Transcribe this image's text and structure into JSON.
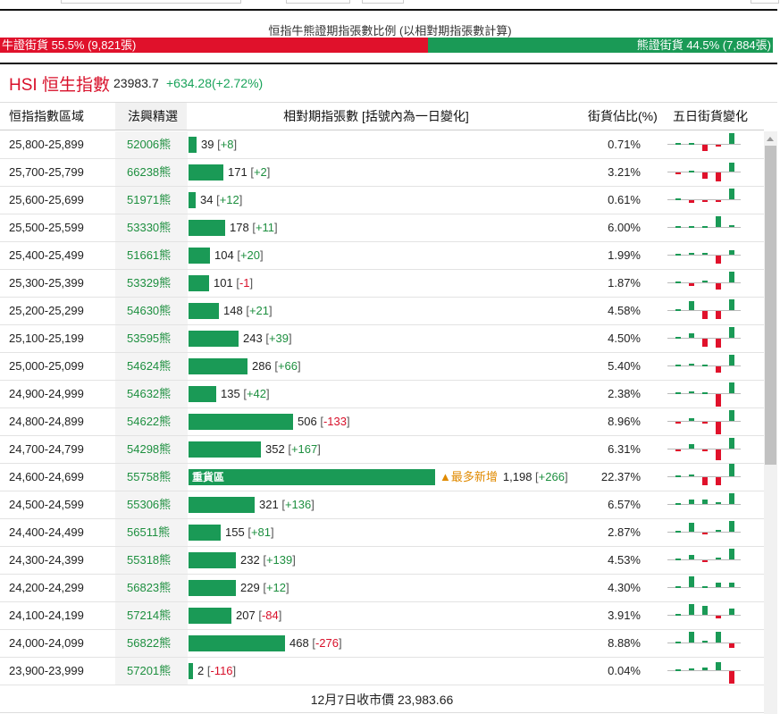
{
  "ratio": {
    "title": "恒指牛熊證期指張數比例 (以相對期指張數計算)",
    "bull_label": "牛證街貨 55.5% (9,821張)",
    "bear_label": "熊證街貨 44.5% (7,884張)",
    "bull_pct": 55.5,
    "bear_pct": 44.5,
    "bull_color": "#e0112b",
    "bear_color": "#1a9a56"
  },
  "index": {
    "name": "HSI 恒生指數",
    "price": "23983.7",
    "change": "+634.28(+2.72%)"
  },
  "table": {
    "headers": {
      "range": "恒指指數區域",
      "code": "法興精選",
      "contracts": "相對期指張數 [括號內為一日變化]",
      "pct": "街貨佔比(%)",
      "five_day": "五日街貨變化"
    },
    "max_contracts": 1198,
    "rows": [
      {
        "range": "25,800-25,899",
        "code": "52006熊",
        "contracts": "39",
        "change": "+8",
        "pct": "0.71%",
        "value": 39,
        "five": [
          0,
          0,
          -4,
          -1,
          7
        ]
      },
      {
        "range": "25,700-25,799",
        "code": "66238熊",
        "contracts": "171",
        "change": "+2",
        "pct": "3.21%",
        "value": 171,
        "five": [
          -1,
          0,
          -4,
          -6,
          6
        ]
      },
      {
        "range": "25,600-25,699",
        "code": "51971熊",
        "contracts": "34",
        "change": "+12",
        "pct": "0.61%",
        "value": 34,
        "five": [
          0,
          -2,
          -1,
          -1,
          7
        ]
      },
      {
        "range": "25,500-25,599",
        "code": "53330熊",
        "contracts": "178",
        "change": "+11",
        "pct": "6.00%",
        "value": 178,
        "five": [
          0,
          0,
          0,
          7,
          1
        ]
      },
      {
        "range": "25,400-25,499",
        "code": "51661熊",
        "contracts": "104",
        "change": "+20",
        "pct": "1.99%",
        "value": 104,
        "five": [
          0,
          1,
          1,
          -5,
          3
        ]
      },
      {
        "range": "25,300-25,399",
        "code": "53329熊",
        "contracts": "101",
        "change": "-1",
        "pct": "1.87%",
        "value": 101,
        "five": [
          0,
          -2,
          1,
          -4,
          7
        ]
      },
      {
        "range": "25,200-25,299",
        "code": "54630熊",
        "contracts": "148",
        "change": "+21",
        "pct": "4.58%",
        "value": 148,
        "five": [
          0,
          6,
          -5,
          -5,
          7
        ]
      },
      {
        "range": "25,100-25,199",
        "code": "53595熊",
        "contracts": "243",
        "change": "+39",
        "pct": "4.50%",
        "value": 243,
        "five": [
          0,
          3,
          -5,
          -6,
          7
        ]
      },
      {
        "range": "25,000-25,099",
        "code": "54624熊",
        "contracts": "286",
        "change": "+66",
        "pct": "5.40%",
        "value": 286,
        "five": [
          0,
          1,
          0,
          -4,
          7
        ]
      },
      {
        "range": "24,900-24,999",
        "code": "54632熊",
        "contracts": "135",
        "change": "+42",
        "pct": "2.38%",
        "value": 135,
        "five": [
          0,
          1,
          0,
          -8,
          7
        ]
      },
      {
        "range": "24,800-24,899",
        "code": "54622熊",
        "contracts": "506",
        "change": "-133",
        "pct": "8.96%",
        "value": 506,
        "five": [
          -1,
          2,
          -1,
          -8,
          7
        ]
      },
      {
        "range": "24,700-24,799",
        "code": "54298熊",
        "contracts": "352",
        "change": "+167",
        "pct": "6.31%",
        "value": 352,
        "five": [
          -1,
          3,
          -1,
          -7,
          7
        ]
      },
      {
        "range": "24,600-24,699",
        "code": "55758熊",
        "contracts": "1,198",
        "change": "+266",
        "pct": "22.37%",
        "value": 1198,
        "label": "重貨區",
        "most": "最多新增",
        "five": [
          0,
          1,
          -5,
          -5,
          8
        ]
      },
      {
        "range": "24,500-24,599",
        "code": "55306熊",
        "contracts": "321",
        "change": "+136",
        "pct": "6.57%",
        "value": 321,
        "five": [
          0,
          3,
          3,
          1,
          7
        ]
      },
      {
        "range": "24,400-24,499",
        "code": "56511熊",
        "contracts": "155",
        "change": "+81",
        "pct": "2.87%",
        "value": 155,
        "five": [
          0,
          6,
          -1,
          1,
          7
        ]
      },
      {
        "range": "24,300-24,399",
        "code": "55318熊",
        "contracts": "232",
        "change": "+139",
        "pct": "4.53%",
        "value": 232,
        "five": [
          0,
          3,
          -1,
          1,
          7
        ]
      },
      {
        "range": "24,200-24,299",
        "code": "56823熊",
        "contracts": "229",
        "change": "+12",
        "pct": "4.30%",
        "value": 229,
        "five": [
          0,
          7,
          0,
          3,
          3
        ]
      },
      {
        "range": "24,100-24,199",
        "code": "57214熊",
        "contracts": "207",
        "change": "-84",
        "pct": "3.91%",
        "value": 207,
        "five": [
          0,
          7,
          6,
          -2,
          4
        ]
      },
      {
        "range": "24,000-24,099",
        "code": "56822熊",
        "contracts": "468",
        "change": "-276",
        "pct": "8.88%",
        "value": 468,
        "five": [
          0,
          7,
          1,
          7,
          -3
        ]
      },
      {
        "range": "23,900-23,999",
        "code": "57201熊",
        "contracts": "2",
        "change": "-116",
        "pct": "0.04%",
        "value": 2,
        "five": [
          0,
          1,
          2,
          5,
          -8
        ]
      }
    ]
  },
  "footer": {
    "text": "12月7日收市價 23,983.66"
  }
}
